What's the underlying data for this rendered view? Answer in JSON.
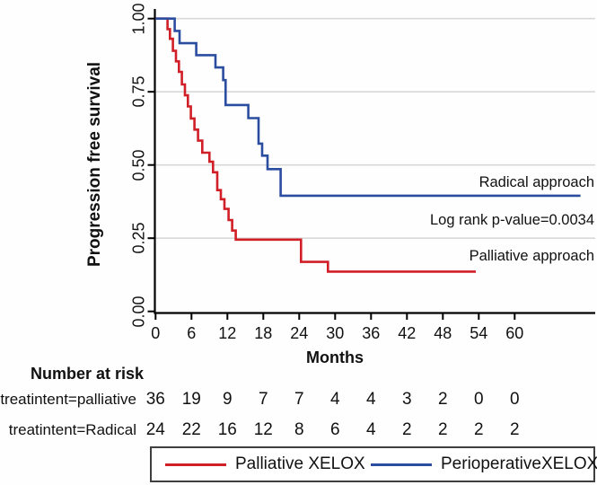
{
  "chart_data": {
    "type": "line",
    "subtype": "kaplan-meier-step",
    "title": "",
    "xlabel": "Months",
    "ylabel": "Progression free survival",
    "xlim": [
      0,
      73.5
    ],
    "ylim": [
      0.0,
      1.0
    ],
    "grid": "horizontal",
    "xticks": [
      0,
      6,
      12,
      18,
      24,
      30,
      36,
      42,
      48,
      54,
      60
    ],
    "yticks": [
      {
        "label": "1.00",
        "v": 1.0
      },
      {
        "label": "0.75",
        "v": 0.75
      },
      {
        "label": "0.50",
        "v": 0.5
      },
      {
        "label": "0.25",
        "v": 0.25
      },
      {
        "label": "0.00",
        "v": 0.0
      }
    ],
    "colors": {
      "palliative": "#d11f27",
      "radical": "#2b4da0",
      "gridline": "#d8d8d8",
      "axis": "#000000"
    },
    "annotations": {
      "radical": "Radical approach",
      "log_rank": "Log rank p-value=0.0034",
      "palliative": "Palliative approach"
    },
    "series": [
      {
        "key": "palliative",
        "name": "Palliative XELOX",
        "group": "treatintent=palliative",
        "color": "#d11f27",
        "end_month": 53.5,
        "steps": [
          [
            0,
            1.0
          ],
          [
            2.0,
            0.964
          ],
          [
            2.4,
            0.931
          ],
          [
            2.9,
            0.89
          ],
          [
            3.4,
            0.854
          ],
          [
            3.9,
            0.818
          ],
          [
            4.4,
            0.775
          ],
          [
            4.9,
            0.738
          ],
          [
            5.4,
            0.7
          ],
          [
            5.9,
            0.659
          ],
          [
            6.5,
            0.621
          ],
          [
            7.1,
            0.583
          ],
          [
            7.8,
            0.542
          ],
          [
            9.0,
            0.511
          ],
          [
            9.6,
            0.475
          ],
          [
            10.3,
            0.414
          ],
          [
            10.9,
            0.383
          ],
          [
            11.5,
            0.35
          ],
          [
            12.2,
            0.312
          ],
          [
            12.8,
            0.276
          ],
          [
            13.4,
            0.245
          ],
          [
            24.3,
            0.169
          ],
          [
            28.8,
            0.136
          ]
        ]
      },
      {
        "key": "radical",
        "name": "PerioperativeXELOX",
        "group": "treatintent=Radical",
        "color": "#2b4da0",
        "end_month": 71.0,
        "steps": [
          [
            0,
            1.0
          ],
          [
            3.2,
            0.958
          ],
          [
            4.0,
            0.916
          ],
          [
            6.8,
            0.875
          ],
          [
            10.0,
            0.833
          ],
          [
            11.3,
            0.79
          ],
          [
            11.7,
            0.705
          ],
          [
            15.5,
            0.66
          ],
          [
            17.2,
            0.573
          ],
          [
            17.8,
            0.532
          ],
          [
            18.7,
            0.486
          ],
          [
            20.9,
            0.395
          ]
        ]
      }
    ],
    "risk_table": {
      "title": "Number at risk",
      "months": [
        0,
        6,
        12,
        18,
        24,
        30,
        36,
        42,
        48,
        54,
        60
      ],
      "rows": [
        {
          "label": "treatintent=palliative",
          "counts": [
            36,
            19,
            9,
            7,
            7,
            4,
            4,
            3,
            2,
            0,
            0
          ]
        },
        {
          "label": "treatintent=Radical",
          "counts": [
            24,
            22,
            16,
            12,
            8,
            6,
            4,
            2,
            2,
            2,
            2
          ]
        }
      ]
    }
  }
}
